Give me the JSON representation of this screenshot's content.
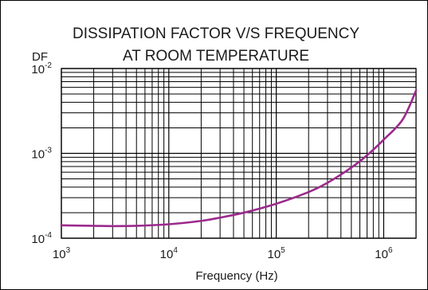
{
  "chart_data": {
    "type": "line",
    "title_lines": [
      "DISSIPATION FACTOR V/S  FREQUENCY",
      "AT ROOM TEMPERATURE"
    ],
    "ylabel": "DF",
    "xlabel": "Frequency (Hz)",
    "x_scale": "log",
    "y_scale": "log",
    "xlim": [
      1000,
      2000000
    ],
    "ylim": [
      0.0001,
      0.01
    ],
    "grid": true,
    "x_ticks": [
      {
        "value": 1000,
        "base": "10",
        "exp": "3"
      },
      {
        "value": 10000,
        "base": "10",
        "exp": "4"
      },
      {
        "value": 100000,
        "base": "10",
        "exp": "5"
      },
      {
        "value": 1000000,
        "base": "10",
        "exp": "6"
      }
    ],
    "y_ticks": [
      {
        "value": 0.0001,
        "base": "10",
        "exp": "-4"
      },
      {
        "value": 0.001,
        "base": "10",
        "exp": "-3"
      },
      {
        "value": 0.01,
        "base": "10",
        "exp": "-2"
      }
    ],
    "series": [
      {
        "color": "#9b2a8c",
        "x": [
          1000,
          2000,
          3000,
          5000,
          10000,
          20000,
          30000,
          50000,
          100000,
          200000,
          300000,
          500000,
          700000,
          1000000,
          1500000,
          2000000
        ],
        "y": [
          0.000142,
          0.00014,
          0.000139,
          0.00014,
          0.000146,
          0.00016,
          0.000175,
          0.0002,
          0.000255,
          0.00035,
          0.00045,
          0.00068,
          0.00095,
          0.00145,
          0.0025,
          0.0055
        ]
      }
    ]
  }
}
